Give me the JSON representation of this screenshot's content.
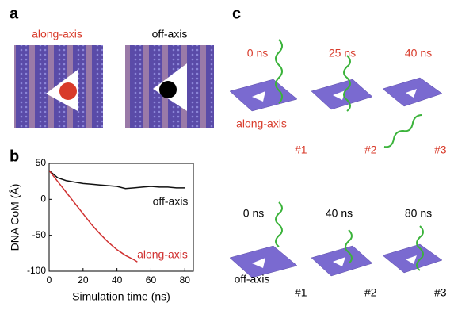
{
  "panel_a": {
    "letter": "a",
    "left_label": "along-axis",
    "right_label": "off-axis"
  },
  "panel_b": {
    "letter": "b",
    "chart_data": {
      "type": "line",
      "xlabel": "Simulation time (ns)",
      "ylabel": "DNA CoM (Å)",
      "xlim": [
        0,
        85
      ],
      "xticks": [
        0,
        20,
        40,
        60,
        80
      ],
      "ylim": [
        -100,
        50
      ],
      "yticks": [
        50,
        0,
        -50,
        -100
      ],
      "series": [
        {
          "name": "off-axis",
          "color": "#111111",
          "x": [
            0,
            5,
            10,
            15,
            20,
            25,
            30,
            35,
            40,
            45,
            50,
            55,
            60,
            65,
            70,
            75,
            80
          ],
          "values": [
            40,
            30,
            26,
            24,
            22,
            21,
            20,
            19,
            18,
            15,
            16,
            17,
            18,
            17,
            17,
            16,
            16
          ]
        },
        {
          "name": "along-axis",
          "color": "#d03030",
          "x": [
            0,
            5,
            10,
            15,
            20,
            25,
            30,
            35,
            40,
            45,
            50,
            52
          ],
          "values": [
            40,
            25,
            10,
            -5,
            -20,
            -35,
            -48,
            -60,
            -70,
            -78,
            -84,
            -87
          ]
        }
      ]
    }
  },
  "panel_c": {
    "letter": "c",
    "row1": {
      "label": "along-axis",
      "times": [
        "0 ns",
        "25 ns",
        "40 ns"
      ],
      "ids": [
        "#1",
        "#2",
        "#3"
      ]
    },
    "row2": {
      "label": "off-axis",
      "times": [
        "0 ns",
        "40 ns",
        "80 ns"
      ],
      "ids": [
        "#1",
        "#2",
        "#3"
      ]
    }
  }
}
